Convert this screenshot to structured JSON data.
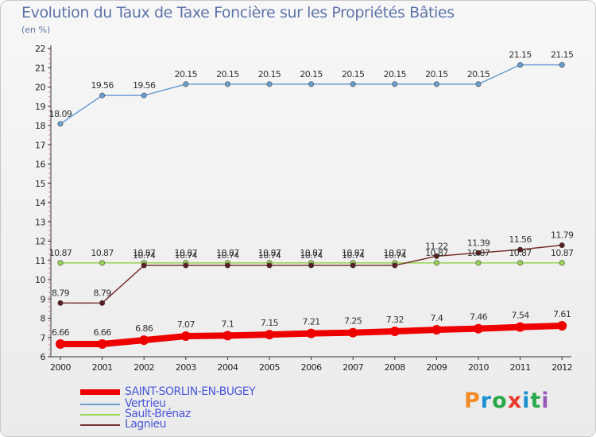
{
  "title": "Evolution du Taux de Taxe Foncière sur les Propriétés Bâties",
  "subtitle": "(en %)",
  "logo": {
    "letters": [
      "P",
      "r",
      "o",
      "x",
      "i",
      "t",
      "i"
    ]
  },
  "colors": {
    "logo": [
      "#f28c28",
      "#1e90d0",
      "#2aa84a",
      "#e8392b",
      "#1e90d0",
      "#2aa84a",
      "#9b59b6"
    ],
    "saint_sorlin": "#ee0000",
    "vertrieu": "#6a9fd0",
    "sault_brenaz": "#99d455",
    "lagnieu": "#7a3232",
    "axis": "#333333"
  },
  "chart_data": {
    "type": "line",
    "title": "Evolution du Taux de Taxe Foncière sur les Propriétés Bâties",
    "ylabel": "(en %)",
    "xlabel": "",
    "ylim": [
      6,
      22
    ],
    "yticks": [
      "6",
      "7",
      "8",
      "9",
      "10",
      "11",
      "12",
      "13",
      "14",
      "15",
      "16",
      "17",
      "18",
      "19",
      "20",
      "21",
      "22"
    ],
    "x": [
      "2000",
      "2001",
      "2002",
      "2003",
      "2004",
      "2005",
      "2006",
      "2007",
      "2008",
      "2009",
      "2010",
      "2011",
      "2012"
    ],
    "legend_position": "bottom-left",
    "series": [
      {
        "key": "saint_sorlin",
        "name": "SAINT-SORLIN-EN-BUGEY",
        "values": [
          6.66,
          6.66,
          6.86,
          7.07,
          7.1,
          7.15,
          7.21,
          7.25,
          7.32,
          7.4,
          7.46,
          7.54,
          7.61
        ],
        "labels": [
          "6.66",
          "6.66",
          "6.86",
          "7.07",
          "7.1",
          "7.15",
          "7.21",
          "7.25",
          "7.32",
          "7.4",
          "7.46",
          "7.54",
          "7.61"
        ]
      },
      {
        "key": "vertrieu",
        "name": "Vertrieu",
        "values": [
          18.09,
          19.56,
          19.56,
          20.15,
          20.15,
          20.15,
          20.15,
          20.15,
          20.15,
          20.15,
          20.15,
          21.15,
          21.15
        ],
        "labels": [
          "18.09",
          "19.56",
          "19.56",
          "20.15",
          "20.15",
          "20.15",
          "20.15",
          "20.15",
          "20.15",
          "20.15",
          "20.15",
          "21.15",
          "21.15"
        ]
      },
      {
        "key": "sault_brenaz",
        "name": "Sault-Brénaz",
        "values": [
          10.87,
          10.87,
          10.87,
          10.87,
          10.87,
          10.87,
          10.87,
          10.87,
          10.87,
          10.87,
          10.87,
          10.87,
          10.87
        ],
        "labels": [
          "10.87",
          "10.87",
          "10.87",
          "10.87",
          "10.87",
          "10.87",
          "10.87",
          "10.87",
          "10.87",
          "10.87",
          "10.87",
          "10.87",
          "10.87"
        ]
      },
      {
        "key": "lagnieu",
        "name": "Lagnieu",
        "values": [
          8.79,
          8.79,
          10.74,
          10.74,
          10.74,
          10.74,
          10.74,
          10.74,
          10.74,
          11.22,
          11.39,
          11.56,
          11.79
        ],
        "labels": [
          "8.79",
          "8.79",
          "10.74",
          "10.74",
          "10.74",
          "10.74",
          "10.74",
          "10.74",
          "10.74",
          "11.22",
          "11.39",
          "11.56",
          "11.79"
        ]
      }
    ]
  }
}
